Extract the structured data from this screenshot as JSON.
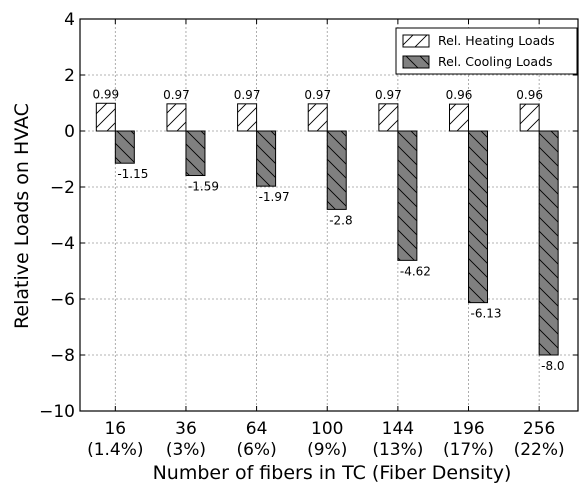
{
  "chart_data": {
    "type": "bar",
    "title": "",
    "xlabel": "Number of fibers in TC (Fiber Density)",
    "ylabel": "Relative Loads on HVAC",
    "ylim": [
      -10,
      4
    ],
    "yticks": [
      "4",
      "2",
      "0",
      "−2",
      "−4",
      "−6",
      "−8",
      "−10"
    ],
    "ytick_values": [
      4,
      2,
      0,
      -2,
      -4,
      -6,
      -8,
      -10
    ],
    "grid": true,
    "legend_position": "top-right",
    "categories": [
      {
        "line1": "16",
        "line2": "(1.4%)"
      },
      {
        "line1": "36",
        "line2": "(3%)"
      },
      {
        "line1": "64",
        "line2": "(6%)"
      },
      {
        "line1": "100",
        "line2": "(9%)"
      },
      {
        "line1": "144",
        "line2": "(13%)"
      },
      {
        "line1": "196",
        "line2": "(17%)"
      },
      {
        "line1": "256",
        "line2": "(22%)"
      }
    ],
    "series": [
      {
        "name": "Rel. Heating Loads",
        "values": [
          0.99,
          0.97,
          0.97,
          0.97,
          0.97,
          0.96,
          0.96
        ],
        "labels": [
          "0.99",
          "0.97",
          "0.97",
          "0.97",
          "0.97",
          "0.96",
          "0.96"
        ],
        "color": "#ffffff",
        "hatch": "/"
      },
      {
        "name": "Rel. Cooling Loads",
        "values": [
          -1.15,
          -1.59,
          -1.97,
          -2.8,
          -4.62,
          -6.13,
          -8.0
        ],
        "labels": [
          "-1.15",
          "-1.59",
          "-1.97",
          "-2.8",
          "-4.62",
          "-6.13",
          "-8.0"
        ],
        "color": "#808080",
        "hatch": "\\"
      }
    ]
  }
}
